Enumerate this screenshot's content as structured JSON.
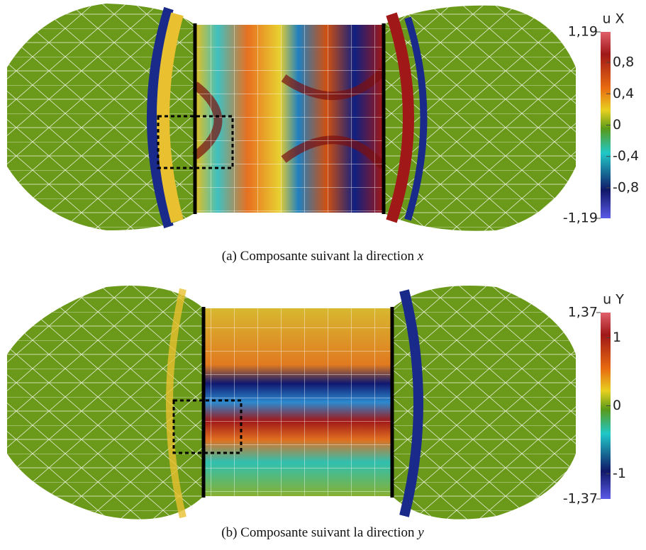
{
  "figures": [
    {
      "colorbar": {
        "title": "u X",
        "ticks": [
          {
            "value": 1.19,
            "label": "1,19"
          },
          {
            "value": 0.8,
            "label": "0,8"
          },
          {
            "value": 0.4,
            "label": "0,4"
          },
          0,
          {
            "value": -0.4,
            "label": "-0,4"
          },
          {
            "value": -0.8,
            "label": "-0,8"
          },
          {
            "value": -1.19,
            "label": "-1,19"
          }
        ]
      },
      "caption": {
        "label": "(a)",
        "text": "Composante suivant la direction",
        "variable": "x"
      }
    },
    {
      "colorbar": {
        "title": "u Y",
        "ticks": [
          {
            "value": 1.37,
            "label": "1,37"
          },
          1,
          0,
          -1,
          {
            "value": -1.37,
            "label": "-1,37"
          }
        ]
      },
      "caption": {
        "label": "(b)",
        "text": "Composante suivant la direction",
        "variable": "y"
      }
    }
  ]
}
